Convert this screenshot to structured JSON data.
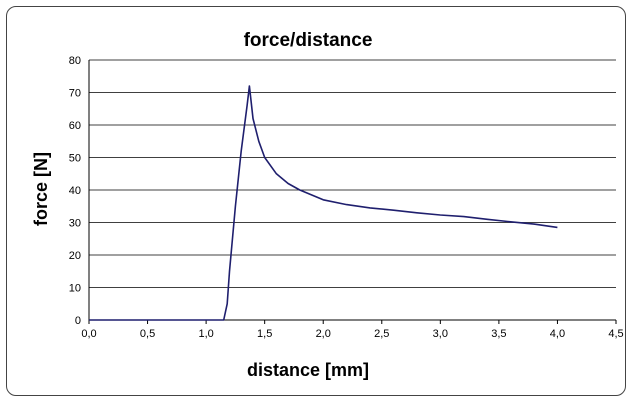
{
  "chart_data": {
    "type": "line",
    "title": "force/distance",
    "xlabel": "distance [mm]",
    "ylabel": "force [N]",
    "xlim": [
      0,
      4.5
    ],
    "ylim": [
      0,
      80
    ],
    "x_ticks": [
      "0,0",
      "0,5",
      "1,0",
      "1,5",
      "2,0",
      "2,5",
      "3,0",
      "3,5",
      "4,0",
      "4,5"
    ],
    "y_ticks": [
      "0",
      "10",
      "20",
      "30",
      "40",
      "50",
      "60",
      "70",
      "80"
    ],
    "grid": "horizontal",
    "colors": {
      "line": "#1f1f6e"
    },
    "series": [
      {
        "x": [
          0,
          0.5,
          1.0,
          1.15,
          1.18,
          1.2,
          1.25,
          1.3,
          1.35,
          1.37,
          1.4,
          1.45,
          1.5,
          1.6,
          1.7,
          1.8,
          1.9,
          2.0,
          2.2,
          2.4,
          2.6,
          2.8,
          3.0,
          3.2,
          3.4,
          3.6,
          3.8,
          4.0
        ],
        "y": [
          0,
          0,
          0,
          0,
          5,
          15,
          35,
          52,
          66,
          72,
          62,
          55,
          50,
          45,
          42,
          40,
          38.5,
          37,
          35.5,
          34.5,
          33.8,
          33,
          32.3,
          31.8,
          31,
          30.2,
          29.5,
          28.5
        ]
      }
    ]
  }
}
